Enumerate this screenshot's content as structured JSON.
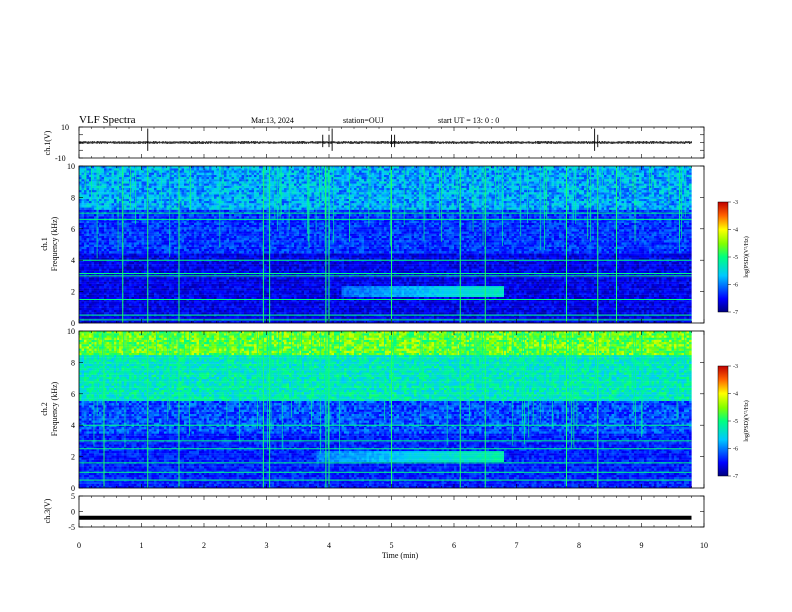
{
  "header": {
    "title": "VLF Spectra",
    "date": "Mar.13, 2024",
    "station": "station=OUJ",
    "start": "start  UT  =   13: 0  : 0"
  },
  "chart_data": [
    {
      "type": "line",
      "panel": "ch1-waveform",
      "ylabel": "ch.1(V)",
      "ylim": [
        -10,
        10
      ],
      "ytick_labels": [
        "10",
        "-10"
      ],
      "series": [
        {
          "values_summary": {
            "baseline": 0,
            "typical_min": -1,
            "typical_max": 1,
            "spikes_x_min": [
              1.1,
              3.9,
              4.0,
              4.05,
              5.0,
              5.05,
              8.25,
              8.3
            ]
          }
        }
      ],
      "xlim": [
        0,
        10
      ]
    },
    {
      "type": "heatmap",
      "panel": "ch1-spectrogram",
      "ylabel": "ch.1\nFrequency (kHz)",
      "ylabel_line1": "ch.1",
      "ylabel_line2": "Frequency (kHz)",
      "xlim": [
        0,
        10
      ],
      "data_x_max": 9.8,
      "ylim": [
        0,
        10
      ],
      "ytick_labels": [
        "0",
        "2",
        "4",
        "6",
        "8",
        "10"
      ],
      "colorbar": {
        "label": "log(PSD)(V²/Hz)",
        "range": [
          -7,
          -3
        ],
        "tick_labels": [
          "-3",
          "-4",
          "-5",
          "-6",
          "-7"
        ]
      },
      "features": {
        "background_level": -6.6,
        "upper_band_kHz": [
          7.2,
          10
        ],
        "upper_band_level": -5.8,
        "hiss_band": {
          "x_min": [
            4.2,
            6.8
          ],
          "y_kHz": [
            1.7,
            2.3
          ],
          "level": -5.3
        },
        "horizontal_lines_kHz": [
          0.2,
          0.5,
          1.5,
          3.0,
          3.15,
          4.0,
          6.6,
          7.0
        ],
        "vertical_spikes_x_min": [
          0.7,
          1.1,
          1.6,
          2.95,
          3.05,
          3.95,
          4.0,
          5.0,
          6.1,
          6.5,
          7.8,
          8.3,
          8.6
        ]
      }
    },
    {
      "type": "heatmap",
      "panel": "ch2-spectrogram",
      "ylabel": "ch.2\nFrequency (kHz)",
      "ylabel_line1": "ch.2",
      "ylabel_line2": "Frequency (kHz)",
      "xlim": [
        0,
        10
      ],
      "data_x_max": 9.8,
      "ylim": [
        0,
        10
      ],
      "ytick_labels": [
        "0",
        "2",
        "4",
        "6",
        "8",
        "10"
      ],
      "colorbar": {
        "label": "log(PSD)(V²/Hz)",
        "range": [
          -7,
          -3
        ],
        "tick_labels": [
          "-3",
          "-4",
          "-5",
          "-6",
          "-7"
        ]
      },
      "features": {
        "background_level": -6.4,
        "top_band_kHz": [
          8.5,
          10
        ],
        "top_band_level": -4.6,
        "mid_band_kHz": [
          5.6,
          8.5
        ],
        "mid_band_level": -5.3,
        "hiss_band": {
          "x_min": [
            3.8,
            6.8
          ],
          "y_kHz": [
            1.6,
            2.4
          ],
          "level": -5.2
        },
        "horizontal_lines_kHz": [
          0.5,
          1.0,
          1.6,
          2.5,
          3.0,
          4.0
        ],
        "vertical_spikes_x_min": [
          0.4,
          1.1,
          1.6,
          2.95,
          3.05,
          3.95,
          4.0,
          5.0,
          6.1,
          6.5,
          7.8,
          8.3
        ]
      }
    },
    {
      "type": "line",
      "panel": "ch3-waveform",
      "ylabel": "ch.3(V)",
      "ylim": [
        -5,
        5
      ],
      "ytick_labels": [
        "5",
        "0",
        "-5"
      ],
      "series": [
        {
          "values_summary": {
            "constant": -2
          }
        }
      ],
      "xlim": [
        0,
        10
      ],
      "xlabel": "Time (min)",
      "xtick_labels": [
        "0",
        "1",
        "2",
        "3",
        "4",
        "5",
        "6",
        "7",
        "8",
        "9",
        "10"
      ]
    }
  ]
}
